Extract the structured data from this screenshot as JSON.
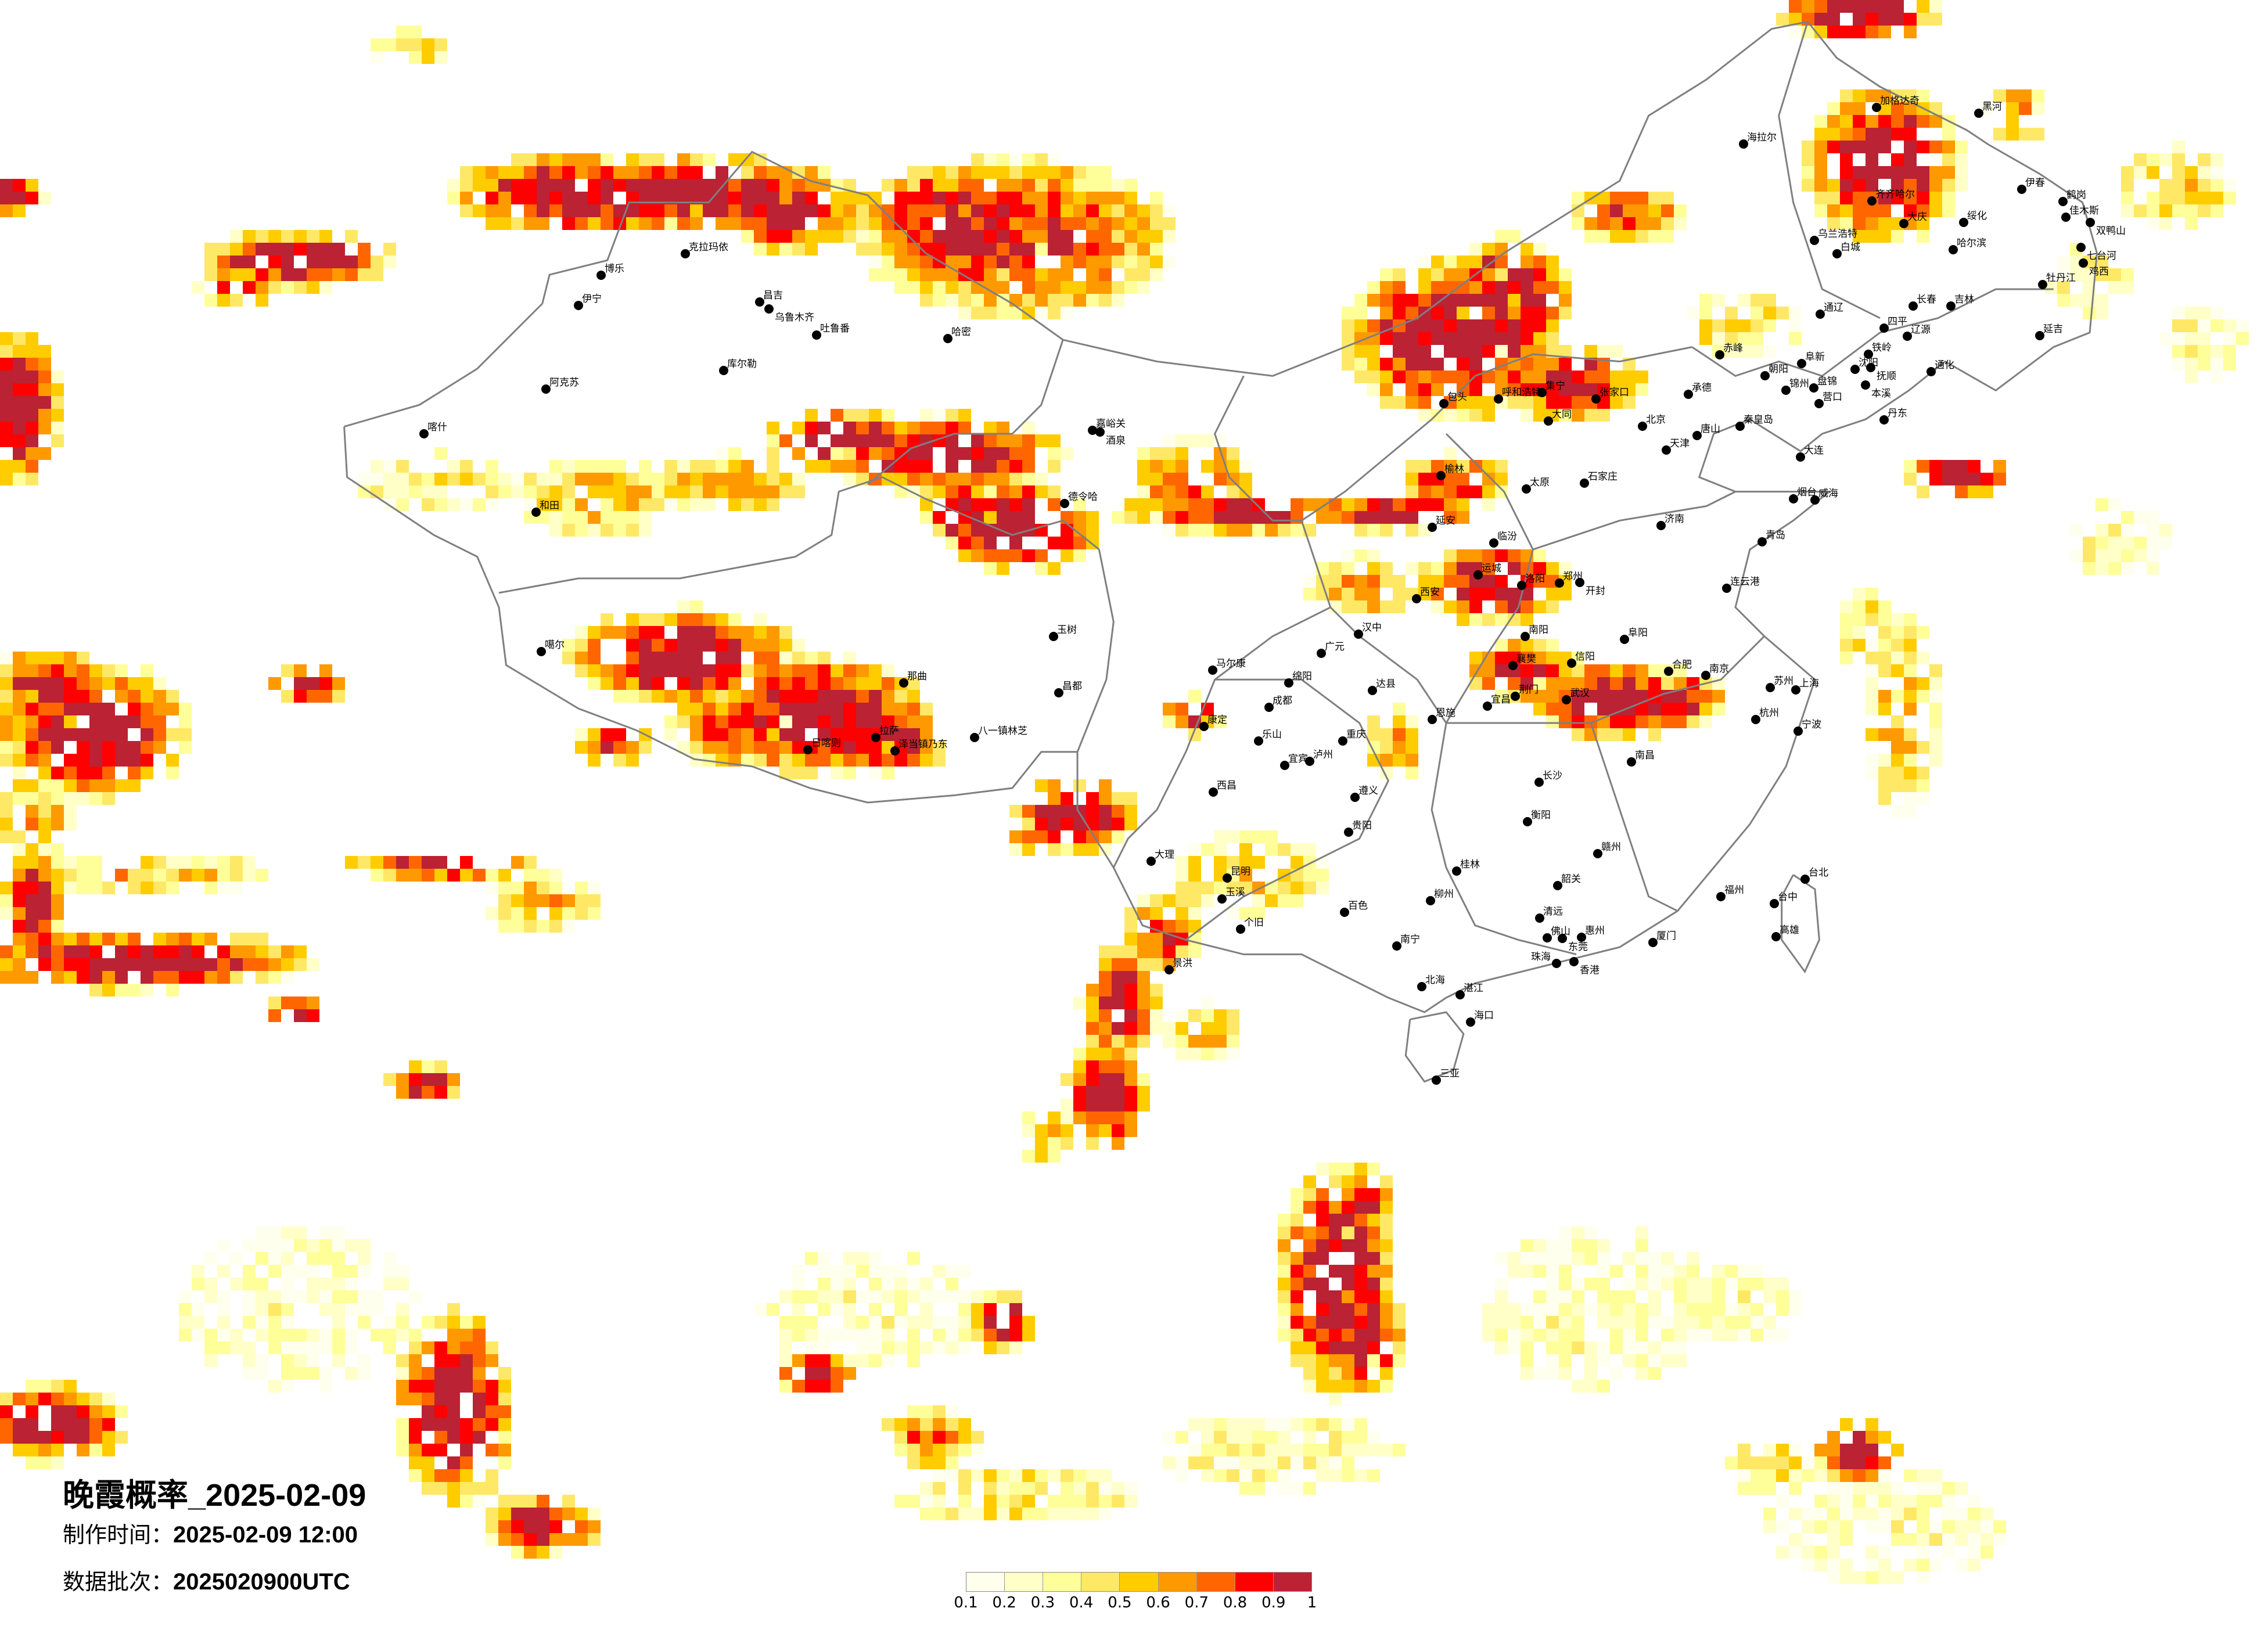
{
  "title": "晚霞概率_2025-02-09",
  "made_time": {
    "label": "制作时间：",
    "value": "2025-02-09 12:00"
  },
  "data_batch": {
    "label": "数据批次：",
    "value": "2025020900UTC"
  },
  "legend": {
    "labels": [
      "0.1",
      "0.2",
      "0.3",
      "0.4",
      "0.5",
      "0.6",
      "0.7",
      "0.8",
      "0.9",
      "1"
    ],
    "colors": [
      "#FFFFEE",
      "#FFFFC8",
      "#FFFF99",
      "#FFE866",
      "#FFCC00",
      "#FF9900",
      "#FF6600",
      "#FF0000",
      "#BB2233"
    ]
  },
  "border_color": "#7F7F7F",
  "cities": [
    "克拉玛依",
    "博乐",
    "伊宁",
    "昌吉",
    "乌鲁木齐",
    "吐鲁番",
    "哈密",
    "库尔勒",
    "阿克苏",
    "和田",
    "喀什",
    "嘉峪关",
    "酒泉",
    "德令哈",
    "玉树",
    "噶尔",
    "那曲",
    "昌都",
    "拉萨",
    "日喀则",
    "泽当镇乃东",
    "八一镇林芝",
    "加格达奇",
    "黑河",
    "海拉尔",
    "齐齐哈尔",
    "大庆",
    "绥化",
    "伊春",
    "鹤岗",
    "佳木斯",
    "双鸭山",
    "乌兰浩特",
    "白城",
    "哈尔滨",
    "七台河",
    "鸡西",
    "牡丹江",
    "长春",
    "吉林",
    "通辽",
    "四平",
    "辽源",
    "延吉",
    "赤峰",
    "阜新",
    "沈阳",
    "抚顺",
    "铁岭",
    "朝阳",
    "锦州",
    "盘锦",
    "营口",
    "本溪",
    "丹东",
    "秦皇岛",
    "承德",
    "通化",
    "呼和浩特",
    "包头",
    "集宁",
    "张家口",
    "大同",
    "北京",
    "天津",
    "唐山",
    "石家庄",
    "太原",
    "济南",
    "青岛",
    "郑州",
    "西安",
    "洛阳",
    "开封",
    "延安",
    "榆林",
    "大连",
    "烟台",
    "威海",
    "合肥",
    "南京",
    "上海",
    "杭州",
    "苏州",
    "武汉",
    "宁波",
    "连云港",
    "运城",
    "临汾",
    "南阳",
    "信阳",
    "阜阳",
    "宜昌",
    "荆门",
    "襄樊",
    "成都",
    "重庆",
    "贵阳",
    "昆明",
    "南宁",
    "长沙",
    "桂林",
    "大理",
    "西昌",
    "汉中",
    "广元",
    "绵阳",
    "达县",
    "乐山",
    "宜宾",
    "泸州",
    "遵义",
    "柳州",
    "衡阳",
    "北海",
    "湛江",
    "景洪",
    "百色",
    "玉溪",
    "个旧",
    "康定",
    "马尔康",
    "恩施",
    "赣州",
    "韶关",
    "佛山",
    "东莞",
    "惠州",
    "香港",
    "珠海",
    "清远",
    "福州",
    "厦门",
    "台北",
    "台中",
    "高雄",
    "海口",
    "三亚",
    "南昌"
  ]
}
